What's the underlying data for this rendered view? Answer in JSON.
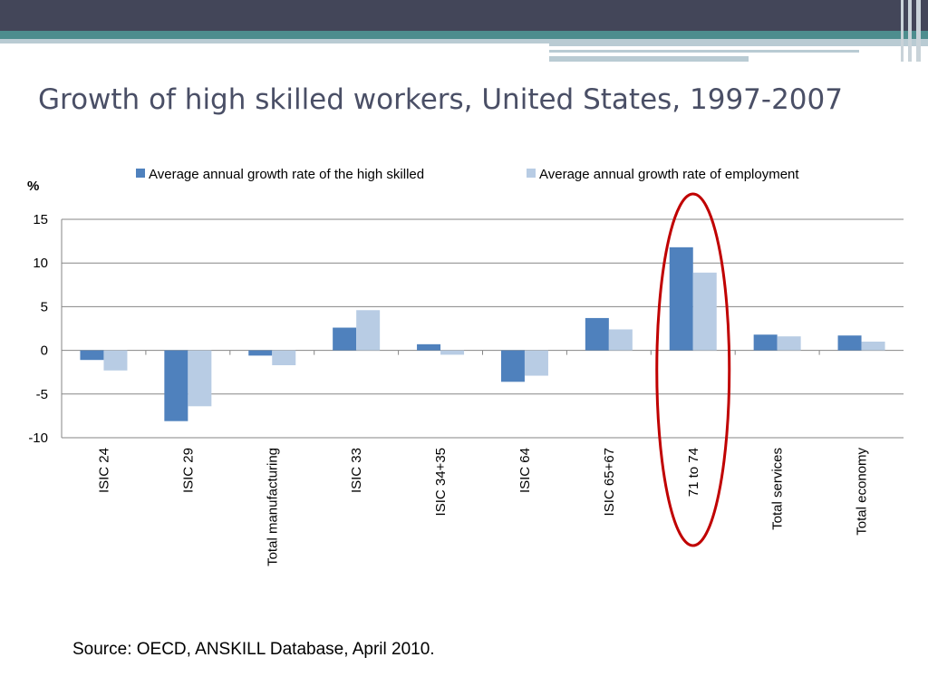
{
  "slide": {
    "title": "Growth of high skilled workers, United States, 1997-2007",
    "source": "Source: OECD, ANSKILL Database, April 2010."
  },
  "colors": {
    "header_dark": "#434659",
    "header_teal": "#4d8d8e",
    "header_light": "#b9cbd3",
    "series_high_skilled": "#4f81bd",
    "series_employment": "#b8cce4",
    "highlight_ellipse": "#c00000",
    "gridline": "#868686"
  },
  "chart_data": {
    "type": "bar",
    "ylabel": "%",
    "ylim": [
      -10,
      15
    ],
    "yticks": [
      15,
      10,
      5,
      0,
      -5,
      -10
    ],
    "grid": true,
    "legend_position": "top",
    "categories": [
      "ISIC 24",
      "ISIC 29",
      "Total manufacturing",
      "ISIC 33",
      "ISIC 34+35",
      "ISIC 64",
      "ISIC 65+67",
      "71 to 74",
      "Total services",
      "Total economy"
    ],
    "series": [
      {
        "name": "Average annual growth rate of the high skilled",
        "values": [
          -1.1,
          -8.1,
          -0.6,
          2.6,
          0.7,
          -3.6,
          3.7,
          11.8,
          1.8,
          1.7
        ]
      },
      {
        "name": "Average annual growth rate of employment",
        "values": [
          -2.3,
          -6.4,
          -1.7,
          4.6,
          -0.5,
          -2.9,
          2.4,
          8.9,
          1.6,
          1.0
        ]
      }
    ],
    "highlight": {
      "category": "71 to 74",
      "shape": "ellipse"
    }
  }
}
